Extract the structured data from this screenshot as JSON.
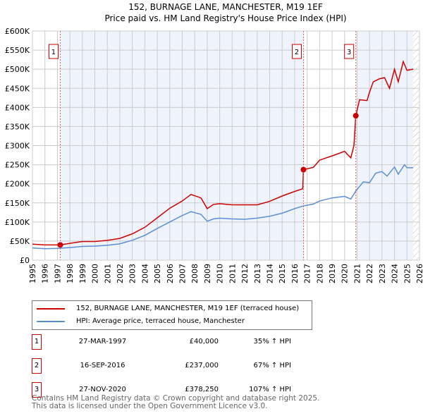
{
  "chart_data": {
    "type": "line",
    "title": "152, BURNAGE LANE, MANCHESTER, M19 1EF",
    "subtitle": "Price paid vs. HM Land Registry's House Price Index (HPI)",
    "xlim": [
      1995,
      2026
    ],
    "ylim": [
      0,
      600000
    ],
    "yticks": [
      0,
      50000,
      100000,
      150000,
      200000,
      250000,
      300000,
      350000,
      400000,
      450000,
      500000,
      550000,
      600000
    ],
    "ytick_labels": [
      "£0",
      "£50K",
      "£100K",
      "£150K",
      "£200K",
      "£250K",
      "£300K",
      "£350K",
      "£400K",
      "£450K",
      "£500K",
      "£550K",
      "£600K"
    ],
    "xticks": [
      1995,
      1996,
      1997,
      1998,
      1999,
      2000,
      2001,
      2002,
      2003,
      2004,
      2005,
      2006,
      2007,
      2008,
      2009,
      2010,
      2011,
      2012,
      2013,
      2014,
      2015,
      2016,
      2017,
      2018,
      2019,
      2020,
      2021,
      2022,
      2023,
      2024,
      2025,
      2026
    ],
    "grid": true,
    "series": [
      {
        "name": "152, BURNAGE LANE, MANCHESTER, M19 1EF (terraced house)",
        "color": "#cc0000",
        "x": [
          1995,
          1996,
          1997.23,
          1998,
          1999,
          2000,
          2001,
          2002,
          2003,
          2004,
          2005,
          2006,
          2007,
          2007.7,
          2008.5,
          2009,
          2009.5,
          2010,
          2011,
          2012,
          2013,
          2014,
          2015,
          2016,
          2016.65,
          2016.71,
          2017.5,
          2018,
          2019,
          2020,
          2020.5,
          2020.75,
          2020.9,
          2021.2,
          2021.8,
          2022,
          2022.3,
          2022.8,
          2023.2,
          2023.6,
          2024,
          2024.3,
          2024.7,
          2025,
          2025.5
        ],
        "y": [
          42000,
          40000,
          40000,
          44000,
          49000,
          49000,
          52000,
          57000,
          69000,
          86000,
          111000,
          136000,
          155000,
          172000,
          163000,
          135000,
          146000,
          148000,
          145000,
          145000,
          145000,
          154000,
          168000,
          180000,
          187000,
          237000,
          243000,
          262000,
          273000,
          285000,
          268000,
          300000,
          378250,
          420000,
          418000,
          440000,
          467000,
          475000,
          478000,
          450000,
          500000,
          467000,
          520000,
          497000,
          500000
        ]
      },
      {
        "name": "HPI: Average price, terraced house, Manchester",
        "color": "#5b8fd6",
        "x": [
          1995,
          1996,
          1997,
          1998,
          1999,
          2000,
          2001,
          2002,
          2003,
          2004,
          2005,
          2006,
          2007,
          2007.7,
          2008.5,
          2009,
          2009.5,
          2010,
          2011,
          2012,
          2013,
          2014,
          2015,
          2016,
          2016.7,
          2017.5,
          2018,
          2019,
          2020,
          2020.5,
          2020.9,
          2021.5,
          2022,
          2022.5,
          2023,
          2023.4,
          2024,
          2024.3,
          2024.8,
          2025,
          2025.5
        ],
        "y": [
          32000,
          30000,
          31000,
          33000,
          36000,
          37000,
          39000,
          43000,
          52000,
          65000,
          83000,
          100000,
          117000,
          127000,
          120000,
          102000,
          108000,
          110000,
          108000,
          107000,
          110000,
          115000,
          123000,
          135000,
          142000,
          147000,
          155000,
          163000,
          167000,
          160000,
          181000,
          205000,
          203000,
          228000,
          232000,
          220000,
          244000,
          225000,
          250000,
          242000,
          242000
        ]
      }
    ],
    "sales": [
      {
        "label": "1",
        "x": 1997.23,
        "y": 40000,
        "date": "27-MAR-1997",
        "price": "£40,000",
        "hpi": "35% ↑ HPI"
      },
      {
        "label": "2",
        "x": 2016.71,
        "y": 237000,
        "date": "16-SEP-2016",
        "price": "£237,000",
        "hpi": "67% ↑ HPI"
      },
      {
        "label": "3",
        "x": 2020.9,
        "y": 378250,
        "date": "27-NOV-2020",
        "price": "£378,250",
        "hpi": "107% ↑ HPI"
      }
    ],
    "shaded_ranges": [
      [
        1997.23,
        2016.71
      ],
      [
        2020.9,
        2025.5
      ]
    ],
    "hatch_from": 2025.5
  },
  "legend": {
    "red": "152, BURNAGE LANE, MANCHESTER, M19 1EF (terraced house)",
    "blue": "HPI: Average price, terraced house, Manchester"
  },
  "footer": {
    "line1": "Contains HM Land Registry data © Crown copyright and database right 2025.",
    "line2": "This data is licensed under the Open Government Licence v3.0."
  }
}
